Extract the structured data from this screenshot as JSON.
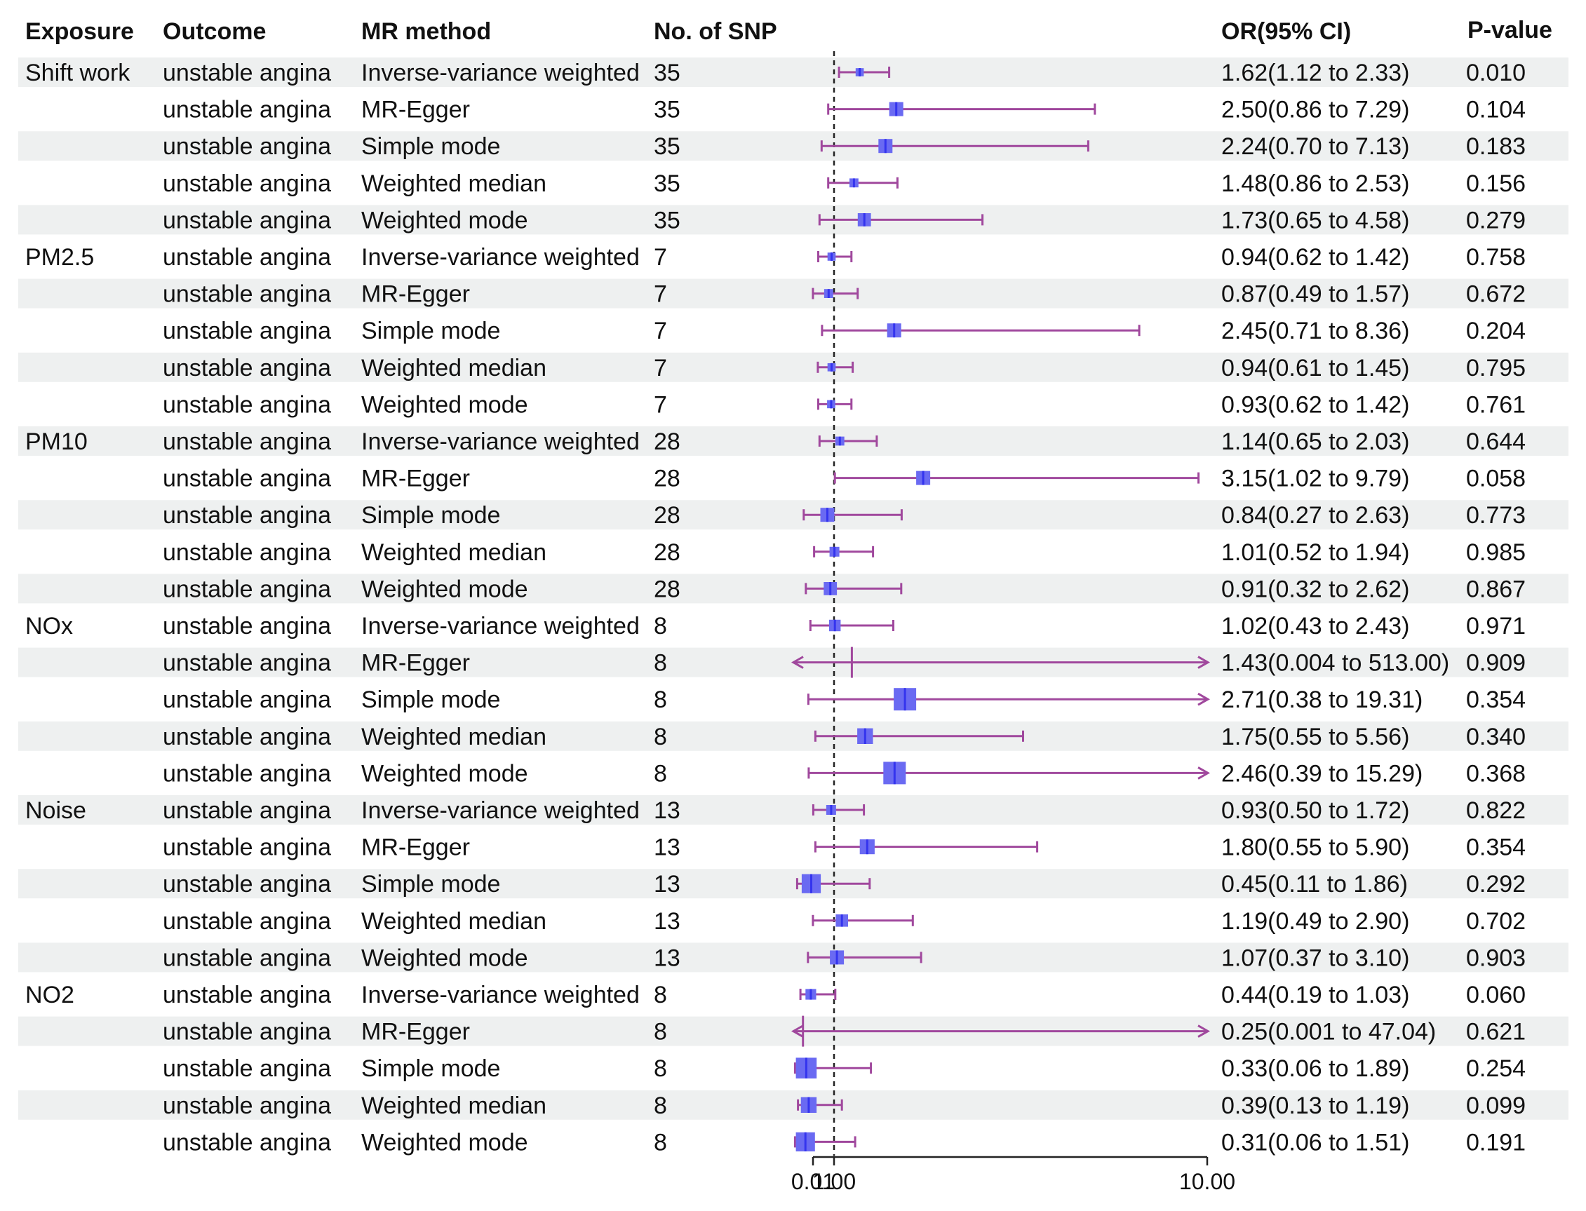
{
  "colors": {
    "band": "#eef0f0",
    "ci_line": "#a0489d",
    "point_fill": "#3434ee",
    "point_box": "#6a6af2",
    "ref_line": "#222222",
    "axis": "#222222"
  },
  "chart_data": {
    "type": "forest",
    "title": "",
    "headers": {
      "exposure": "Exposure",
      "outcome": "Outcome",
      "method": "MR method",
      "nsnp": "No. of SNP",
      "or": "OR(95% CI)",
      "p": "P-value"
    },
    "x_axis": {
      "ticks": [
        0.01,
        1.0,
        10.0
      ],
      "tick_labels": [
        "0.01",
        "1.00",
        "10.00"
      ],
      "display_range": [
        0.01,
        10.0
      ],
      "reference_line": 1.0
    },
    "rows": [
      {
        "exposure": "Shift work",
        "outcome": "unstable angina",
        "method": "Inverse-variance weighted",
        "nsnp": "35",
        "or": 1.62,
        "lo": 1.12,
        "hi": 2.33,
        "or_text": "1.62(1.12 to 2.33)",
        "p": "0.010",
        "weight": 0.15
      },
      {
        "exposure": "",
        "outcome": "unstable angina",
        "method": "MR-Egger",
        "nsnp": "35",
        "or": 2.5,
        "lo": 0.86,
        "hi": 7.29,
        "or_text": "2.50(0.86 to 7.29)",
        "p": "0.104",
        "weight": 0.5
      },
      {
        "exposure": "",
        "outcome": "unstable angina",
        "method": "Simple mode",
        "nsnp": "35",
        "or": 2.24,
        "lo": 0.7,
        "hi": 7.13,
        "or_text": "2.24(0.70 to 7.13)",
        "p": "0.183",
        "weight": 0.5
      },
      {
        "exposure": "",
        "outcome": "unstable angina",
        "method": "Weighted median",
        "nsnp": "35",
        "or": 1.48,
        "lo": 0.86,
        "hi": 2.53,
        "or_text": "1.48(0.86 to 2.53)",
        "p": "0.156",
        "weight": 0.2
      },
      {
        "exposure": "",
        "outcome": "unstable angina",
        "method": "Weighted mode",
        "nsnp": "35",
        "or": 1.73,
        "lo": 0.65,
        "hi": 4.58,
        "or_text": "1.73(0.65 to 4.58)",
        "p": "0.279",
        "weight": 0.45
      },
      {
        "exposure": "PM2.5",
        "outcome": "unstable angina",
        "method": "Inverse-variance weighted",
        "nsnp": "7",
        "or": 0.94,
        "lo": 0.62,
        "hi": 1.42,
        "or_text": "0.94(0.62 to 1.42)",
        "p": "0.758",
        "weight": 0.15
      },
      {
        "exposure": "",
        "outcome": "unstable angina",
        "method": "MR-Egger",
        "nsnp": "7",
        "or": 0.87,
        "lo": 0.49,
        "hi": 1.57,
        "or_text": "0.87(0.49 to 1.57)",
        "p": "0.672",
        "weight": 0.2
      },
      {
        "exposure": "",
        "outcome": "unstable angina",
        "method": "Simple mode",
        "nsnp": "7",
        "or": 2.45,
        "lo": 0.71,
        "hi": 8.36,
        "or_text": "2.45(0.71 to 8.36)",
        "p": "0.204",
        "weight": 0.5
      },
      {
        "exposure": "",
        "outcome": "unstable angina",
        "method": "Weighted median",
        "nsnp": "7",
        "or": 0.94,
        "lo": 0.61,
        "hi": 1.45,
        "or_text": "0.94(0.61 to 1.45)",
        "p": "0.795",
        "weight": 0.15
      },
      {
        "exposure": "",
        "outcome": "unstable angina",
        "method": "Weighted mode",
        "nsnp": "7",
        "or": 0.93,
        "lo": 0.62,
        "hi": 1.42,
        "or_text": "0.93(0.62 to 1.42)",
        "p": "0.761",
        "weight": 0.15
      },
      {
        "exposure": "PM10",
        "outcome": "unstable angina",
        "method": "Inverse-variance weighted",
        "nsnp": "28",
        "or": 1.14,
        "lo": 0.65,
        "hi": 2.03,
        "or_text": "1.14(0.65 to 2.03)",
        "p": "0.644",
        "weight": 0.2
      },
      {
        "exposure": "",
        "outcome": "unstable angina",
        "method": "MR-Egger",
        "nsnp": "28",
        "or": 3.15,
        "lo": 1.02,
        "hi": 9.79,
        "or_text": "3.15(1.02 to 9.79)",
        "p": "0.058",
        "weight": 0.5
      },
      {
        "exposure": "",
        "outcome": "unstable angina",
        "method": "Simple mode",
        "nsnp": "28",
        "or": 0.84,
        "lo": 0.27,
        "hi": 2.63,
        "or_text": "0.84(0.27 to 2.63)",
        "p": "0.773",
        "weight": 0.5
      },
      {
        "exposure": "",
        "outcome": "unstable angina",
        "method": "Weighted median",
        "nsnp": "28",
        "or": 1.01,
        "lo": 0.52,
        "hi": 1.94,
        "or_text": "1.01(0.52 to 1.94)",
        "p": "0.985",
        "weight": 0.25
      },
      {
        "exposure": "",
        "outcome": "unstable angina",
        "method": "Weighted mode",
        "nsnp": "28",
        "or": 0.91,
        "lo": 0.32,
        "hi": 2.62,
        "or_text": "0.91(0.32 to 2.62)",
        "p": "0.867",
        "weight": 0.45
      },
      {
        "exposure": "NOx",
        "outcome": "unstable angina",
        "method": "Inverse-variance weighted",
        "nsnp": "8",
        "or": 1.02,
        "lo": 0.43,
        "hi": 2.43,
        "or_text": "1.02(0.43 to 2.43)",
        "p": "0.971",
        "weight": 0.35
      },
      {
        "exposure": "",
        "outcome": "unstable angina",
        "method": "MR-Egger",
        "nsnp": "8",
        "or": 1.43,
        "lo": 0.004,
        "hi": 513.0,
        "or_text": "1.43(0.004 to 513.00)",
        "p": "0.909",
        "weight": 0.0
      },
      {
        "exposure": "",
        "outcome": "unstable angina",
        "method": "Simple mode",
        "nsnp": "8",
        "or": 2.71,
        "lo": 0.38,
        "hi": 19.31,
        "or_text": "2.71(0.38 to 19.31)",
        "p": "0.354",
        "weight": 1.0
      },
      {
        "exposure": "",
        "outcome": "unstable angina",
        "method": "Weighted median",
        "nsnp": "8",
        "or": 1.75,
        "lo": 0.55,
        "hi": 5.56,
        "or_text": "1.75(0.55 to 5.56)",
        "p": "0.340",
        "weight": 0.6
      },
      {
        "exposure": "",
        "outcome": "unstable angina",
        "method": "Weighted mode",
        "nsnp": "8",
        "or": 2.46,
        "lo": 0.39,
        "hi": 15.29,
        "or_text": "2.46(0.39 to 15.29)",
        "p": "0.368",
        "weight": 1.0
      },
      {
        "exposure": "Noise",
        "outcome": "unstable angina",
        "method": "Inverse-variance weighted",
        "nsnp": "13",
        "or": 0.93,
        "lo": 0.5,
        "hi": 1.72,
        "or_text": "0.93(0.50 to 1.72)",
        "p": "0.822",
        "weight": 0.25
      },
      {
        "exposure": "",
        "outcome": "unstable angina",
        "method": "MR-Egger",
        "nsnp": "13",
        "or": 1.8,
        "lo": 0.55,
        "hi": 5.9,
        "or_text": "1.80(0.55 to 5.90)",
        "p": "0.354",
        "weight": 0.55
      },
      {
        "exposure": "",
        "outcome": "unstable angina",
        "method": "Simple mode",
        "nsnp": "13",
        "or": 0.45,
        "lo": 0.11,
        "hi": 1.86,
        "or_text": "0.45(0.11 to 1.86)",
        "p": "0.292",
        "weight": 0.8
      },
      {
        "exposure": "",
        "outcome": "unstable angina",
        "method": "Weighted median",
        "nsnp": "13",
        "or": 1.19,
        "lo": 0.49,
        "hi": 2.9,
        "or_text": "1.19(0.49 to 2.90)",
        "p": "0.702",
        "weight": 0.4
      },
      {
        "exposure": "",
        "outcome": "unstable angina",
        "method": "Weighted mode",
        "nsnp": "13",
        "or": 1.07,
        "lo": 0.37,
        "hi": 3.1,
        "or_text": "1.07(0.37 to 3.10)",
        "p": "0.903",
        "weight": 0.5
      },
      {
        "exposure": "NO2",
        "outcome": "unstable angina",
        "method": "Inverse-variance weighted",
        "nsnp": "8",
        "or": 0.44,
        "lo": 0.19,
        "hi": 1.03,
        "or_text": "0.44(0.19 to 1.03)",
        "p": "0.060",
        "weight": 0.3
      },
      {
        "exposure": "",
        "outcome": "unstable angina",
        "method": "MR-Egger",
        "nsnp": "8",
        "or": 0.25,
        "lo": 0.001,
        "hi": 47.04,
        "or_text": "0.25(0.001 to 47.04)",
        "p": "0.621",
        "weight": 0.0
      },
      {
        "exposure": "",
        "outcome": "unstable angina",
        "method": "Simple mode",
        "nsnp": "8",
        "or": 0.33,
        "lo": 0.06,
        "hi": 1.89,
        "or_text": "0.33(0.06 to 1.89)",
        "p": "0.254",
        "weight": 0.9
      },
      {
        "exposure": "",
        "outcome": "unstable angina",
        "method": "Weighted median",
        "nsnp": "8",
        "or": 0.39,
        "lo": 0.13,
        "hi": 1.19,
        "or_text": "0.39(0.13 to 1.19)",
        "p": "0.099",
        "weight": 0.6
      },
      {
        "exposure": "",
        "outcome": "unstable angina",
        "method": "Weighted mode",
        "nsnp": "8",
        "or": 0.31,
        "lo": 0.06,
        "hi": 1.51,
        "or_text": "0.31(0.06 to 1.51)",
        "p": "0.191",
        "weight": 0.8
      }
    ]
  }
}
